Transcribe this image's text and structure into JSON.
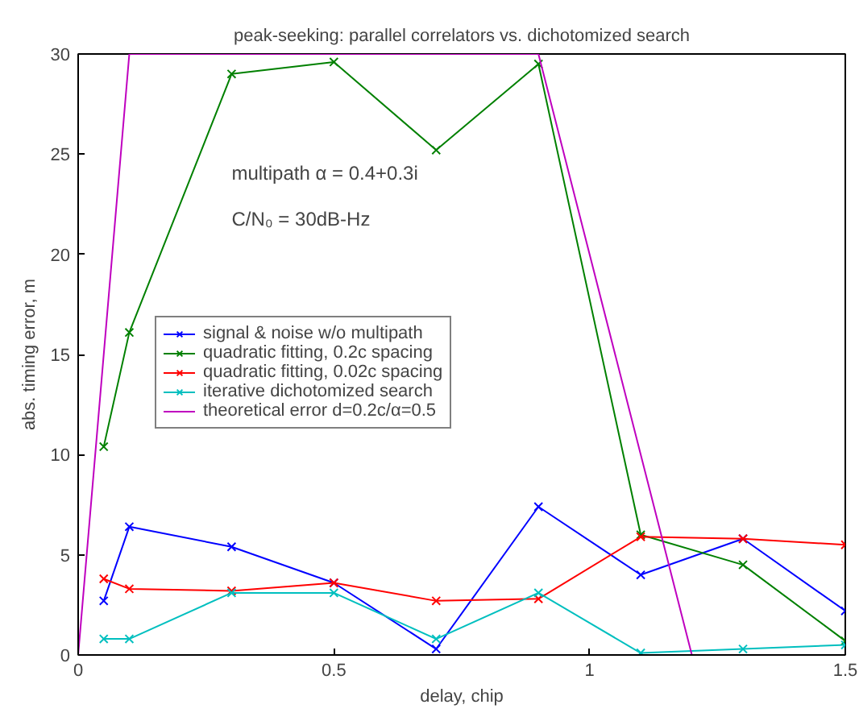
{
  "chart_data": {
    "type": "line",
    "title": "peak-seeking: parallel correlators vs. dichotomized search",
    "xlabel": "delay, chip",
    "ylabel": "abs. timing error, m",
    "x": [
      0.05,
      0.1,
      0.3,
      0.5,
      0.7,
      0.9,
      1.1,
      1.3,
      1.5
    ],
    "series": [
      {
        "name": "signal & noise w/o multipath",
        "color": "#0000ff",
        "values": [
          2.7,
          6.4,
          5.4,
          3.6,
          0.3,
          7.4,
          4.0,
          5.8,
          2.2
        ]
      },
      {
        "name": "quadratic fitting, 0.2c spacing",
        "color": "#008000",
        "values": [
          10.4,
          16.1,
          29.0,
          29.6,
          25.2,
          29.5,
          6.0,
          4.5,
          0.7
        ]
      },
      {
        "name": "quadratic fitting, 0.02c spacing",
        "color": "#ff0000",
        "values": [
          3.8,
          3.3,
          3.2,
          3.6,
          2.7,
          2.8,
          5.9,
          5.8,
          5.5
        ]
      },
      {
        "name": "iterative dichotomized search",
        "color": "#00bfbf",
        "values": [
          0.8,
          0.8,
          3.1,
          3.1,
          0.8,
          3.1,
          0.1,
          0.3,
          0.5
        ]
      },
      {
        "name": "theoretical error d=0.2c/α=0.5",
        "color": "#bf00bf",
        "x": [
          0,
          0.1,
          0.9,
          1.2
        ],
        "values": [
          0,
          30,
          30,
          0
        ],
        "marker": "none"
      }
    ],
    "marker": "cross",
    "line_style": "solid",
    "grid": false,
    "legend": "center left",
    "xlim": [
      0,
      1.5
    ],
    "ylim": [
      0,
      30
    ],
    "xticks": [
      0,
      0.5,
      1,
      1.5
    ],
    "yticks": [
      0,
      5,
      10,
      15,
      20,
      25,
      30
    ],
    "annotations": [
      "multipath α = 0.4+0.3i",
      "C/N₀ = 30dB-Hz"
    ]
  }
}
